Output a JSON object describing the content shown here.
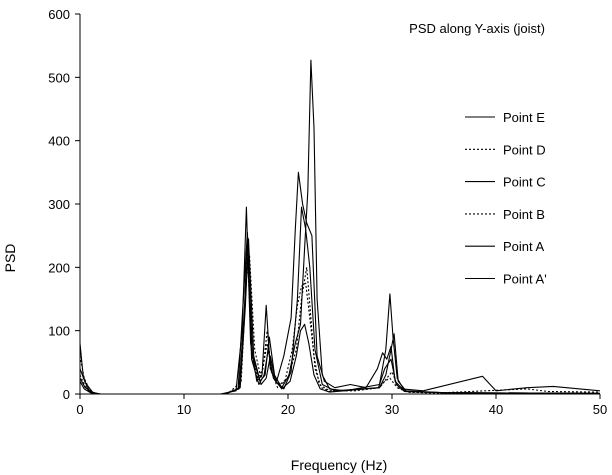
{
  "chart_data": {
    "type": "line",
    "title": "PSD along Y-axis (joist)",
    "xlabel": "Frequency (Hz)",
    "ylabel": "PSD",
    "xlim": [
      0,
      50
    ],
    "ylim": [
      0,
      600
    ],
    "xticks": [
      "0",
      "10",
      "20",
      "30",
      "40",
      "50"
    ],
    "yticks": [
      "0",
      "100",
      "200",
      "300",
      "400",
      "500",
      "600"
    ],
    "grid": false,
    "legend_position": "right",
    "series": [
      {
        "name": "Point E",
        "dashed": false,
        "x": [
          0,
          0.3,
          0.8,
          1.5,
          13.5,
          15.0,
          15.6,
          16.0,
          16.4,
          17.0,
          17.5,
          17.9,
          18.3,
          18.9,
          19.6,
          20.3,
          20.7,
          21.0,
          21.4,
          21.8,
          22.3,
          22.8,
          23.5,
          24.5,
          26.0,
          27.5,
          28.6,
          29.1,
          29.5,
          29.9,
          30.3,
          31.0,
          33.0,
          38.7,
          40.0,
          43.0,
          45.5,
          50.0
        ],
        "y": [
          80,
          30,
          5,
          0,
          0,
          5,
          100,
          295,
          80,
          20,
          30,
          140,
          40,
          20,
          60,
          120,
          260,
          350,
          300,
          270,
          250,
          60,
          20,
          10,
          15,
          10,
          40,
          65,
          55,
          75,
          20,
          8,
          5,
          28,
          5,
          10,
          12,
          5
        ]
      },
      {
        "name": "Point D",
        "dashed": true,
        "x": [
          0,
          0.4,
          1.0,
          1.6,
          14.0,
          15.3,
          15.8,
          16.1,
          16.5,
          17.1,
          17.6,
          18.0,
          18.4,
          19.0,
          19.7,
          20.4,
          20.9,
          21.3,
          21.7,
          22.1,
          22.5,
          23.0,
          24.0,
          26.5,
          28.8,
          29.3,
          29.8,
          30.5,
          31.5,
          35.0,
          43.0,
          45.0,
          50.0
        ],
        "y": [
          60,
          25,
          4,
          0,
          0,
          10,
          120,
          230,
          60,
          25,
          40,
          100,
          35,
          10,
          20,
          70,
          140,
          170,
          175,
          120,
          60,
          15,
          5,
          5,
          10,
          20,
          25,
          10,
          3,
          2,
          8,
          4,
          3
        ]
      },
      {
        "name": "Point C",
        "dashed": false,
        "x": [
          0,
          0.5,
          1.2,
          1.8,
          13.8,
          15.2,
          15.7,
          16.1,
          16.6,
          17.3,
          17.8,
          18.2,
          18.7,
          19.4,
          20.1,
          20.7,
          21.2,
          21.6,
          21.9,
          22.2,
          22.5,
          22.8,
          23.3,
          24.0,
          25.5,
          28.8,
          29.4,
          29.8,
          30.1,
          30.5,
          31.2,
          35.0,
          50.0
        ],
        "y": [
          40,
          18,
          3,
          0,
          0,
          8,
          150,
          255,
          60,
          20,
          30,
          90,
          30,
          10,
          30,
          80,
          110,
          230,
          320,
          527,
          420,
          150,
          30,
          8,
          5,
          15,
          70,
          158,
          90,
          25,
          5,
          2,
          1
        ]
      },
      {
        "name": "Point B",
        "dashed": true,
        "x": [
          0,
          0.5,
          1.2,
          1.9,
          14.2,
          15.5,
          16.0,
          16.3,
          16.8,
          17.4,
          18.0,
          18.5,
          19.2,
          20.0,
          20.8,
          21.3,
          21.8,
          22.2,
          22.6,
          23.2,
          24.0,
          28.8,
          29.5,
          30.0,
          30.6,
          31.5,
          35.0,
          50.0
        ],
        "y": [
          30,
          12,
          2,
          0,
          0,
          20,
          180,
          220,
          70,
          25,
          80,
          30,
          15,
          25,
          70,
          150,
          200,
          120,
          40,
          10,
          4,
          10,
          25,
          35,
          10,
          3,
          1,
          1
        ]
      },
      {
        "name": "Point A",
        "dashed": false,
        "x": [
          0,
          0.5,
          1.3,
          2.0,
          14.0,
          15.4,
          15.9,
          16.2,
          16.7,
          17.4,
          17.9,
          18.3,
          18.8,
          19.6,
          20.3,
          20.9,
          21.3,
          21.7,
          22.1,
          22.6,
          23.3,
          24.5,
          28.7,
          29.3,
          29.9,
          30.4,
          31.2,
          35.0,
          50.0
        ],
        "y": [
          25,
          10,
          2,
          0,
          0,
          10,
          140,
          245,
          60,
          15,
          25,
          60,
          20,
          8,
          35,
          150,
          295,
          260,
          200,
          70,
          15,
          5,
          10,
          40,
          55,
          15,
          4,
          2,
          1
        ]
      },
      {
        "name": "Point A'",
        "dashed": false,
        "x": [
          0,
          0.4,
          1.0,
          1.7,
          13.9,
          15.3,
          15.8,
          16.1,
          16.5,
          17.2,
          17.7,
          18.1,
          18.6,
          19.4,
          20.2,
          20.8,
          21.2,
          21.6,
          22.0,
          22.5,
          23.1,
          24.0,
          28.8,
          29.4,
          29.9,
          30.2,
          30.6,
          31.4,
          35.0,
          50.0
        ],
        "y": [
          20,
          8,
          2,
          0,
          0,
          8,
          130,
          250,
          55,
          15,
          30,
          70,
          25,
          8,
          20,
          60,
          100,
          110,
          80,
          30,
          8,
          3,
          10,
          30,
          70,
          95,
          20,
          4,
          2,
          1
        ]
      }
    ]
  }
}
